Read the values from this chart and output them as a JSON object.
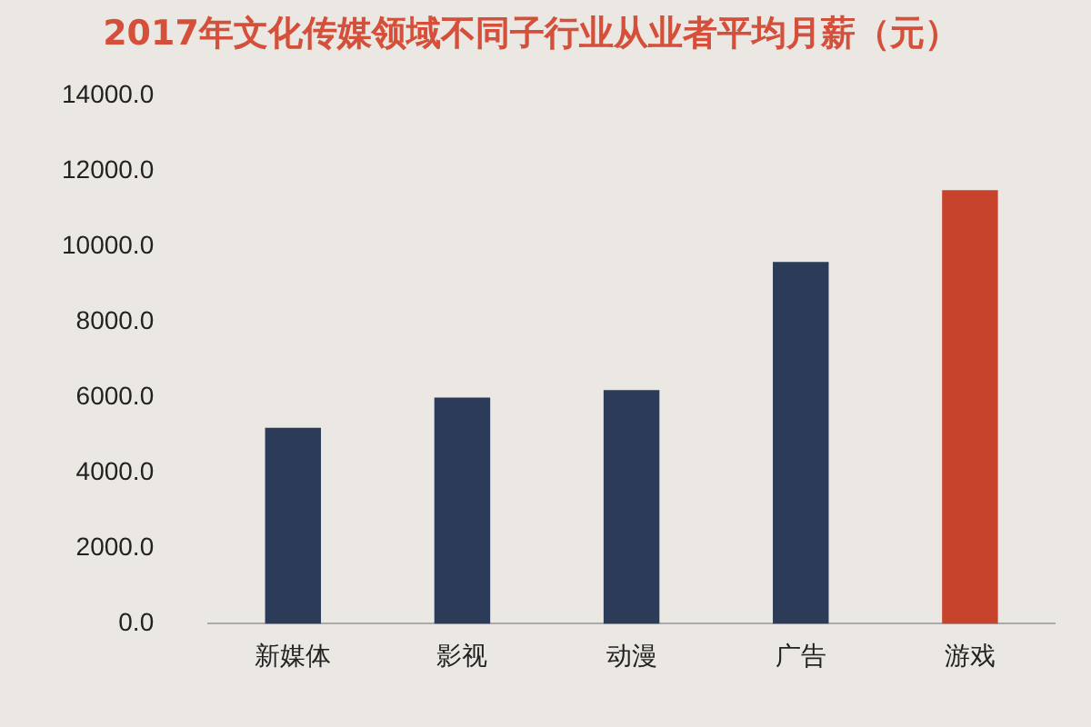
{
  "chart_data": {
    "type": "bar",
    "title": "2017年文化传媒领域不同子行业从业者平均月薪（元）",
    "categories": [
      "新媒体",
      "影视",
      "动漫",
      "广告",
      "游戏"
    ],
    "values": [
      5200,
      6000,
      6200,
      9600,
      11500
    ],
    "colors": [
      "#2c3b57",
      "#2c3b57",
      "#2c3b57",
      "#2c3b57",
      "#c8432c"
    ],
    "ylim": [
      0,
      14000
    ],
    "yticks": [
      {
        "value": 0,
        "label": "0.0"
      },
      {
        "value": 2000,
        "label": "2000.0"
      },
      {
        "value": 4000,
        "label": "4000.0"
      },
      {
        "value": 6000,
        "label": "6000.0"
      },
      {
        "value": 8000,
        "label": "8000.0"
      },
      {
        "value": 10000,
        "label": "10000.0"
      },
      {
        "value": 12000,
        "label": "12000.0"
      },
      {
        "value": 14000,
        "label": "14000.0"
      }
    ],
    "grid": false,
    "legend": false
  }
}
